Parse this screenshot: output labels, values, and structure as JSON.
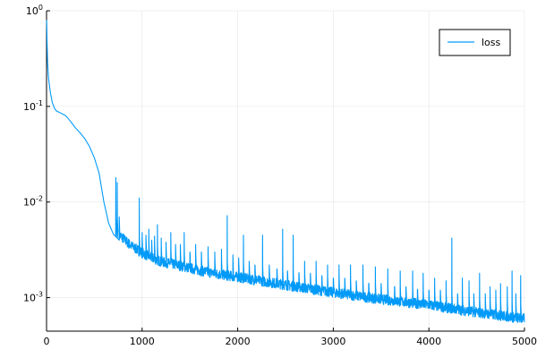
{
  "chart_data": {
    "type": "line",
    "title": "",
    "xlabel": "",
    "ylabel": "",
    "y_scale": "log",
    "grid": true,
    "legend_position": "top-right",
    "xlim": [
      0,
      5000
    ],
    "ylim_log10": [
      -3.35,
      0
    ],
    "x_ticks": [
      0,
      1000,
      2000,
      3000,
      4000,
      5000
    ],
    "x_tick_labels": [
      "0",
      "1000",
      "2000",
      "3000",
      "4000",
      "5000"
    ],
    "y_ticks": [
      1,
      0.1,
      0.01,
      0.001
    ],
    "y_tick_labels": [
      {
        "base": "10",
        "exp": "0"
      },
      {
        "base": "10",
        "exp": "-1"
      },
      {
        "base": "10",
        "exp": "-2"
      },
      {
        "base": "10",
        "exp": "-3"
      }
    ],
    "series": [
      {
        "name": "loss",
        "color": "#009af9",
        "baseline": [
          [
            1,
            0.8
          ],
          [
            5,
            0.5
          ],
          [
            10,
            0.3
          ],
          [
            20,
            0.2
          ],
          [
            40,
            0.14
          ],
          [
            60,
            0.11
          ],
          [
            80,
            0.097
          ],
          [
            100,
            0.09
          ],
          [
            150,
            0.085
          ],
          [
            200,
            0.08
          ],
          [
            250,
            0.07
          ],
          [
            300,
            0.06
          ],
          [
            350,
            0.053
          ],
          [
            400,
            0.046
          ],
          [
            450,
            0.038
          ],
          [
            500,
            0.029
          ],
          [
            550,
            0.02
          ],
          [
            600,
            0.01
          ],
          [
            650,
            0.006
          ],
          [
            700,
            0.0046
          ],
          [
            730,
            0.0043
          ],
          [
            760,
            0.004
          ],
          [
            800,
            0.0037
          ],
          [
            850,
            0.0033
          ],
          [
            900,
            0.003
          ],
          [
            950,
            0.0028
          ],
          [
            1000,
            0.0026
          ],
          [
            1100,
            0.0023
          ],
          [
            1200,
            0.0021
          ],
          [
            1400,
            0.0019
          ],
          [
            1600,
            0.0017
          ],
          [
            1800,
            0.00155
          ],
          [
            2000,
            0.00145
          ],
          [
            2500,
            0.0012
          ],
          [
            3000,
            0.001
          ],
          [
            3500,
            0.00085
          ],
          [
            4000,
            0.00074
          ],
          [
            4500,
            0.00062
          ],
          [
            5000,
            0.00053
          ]
        ],
        "spikes": [
          [
            725,
            0.018
          ],
          [
            740,
            0.016
          ],
          [
            760,
            0.007
          ],
          [
            970,
            0.011
          ],
          [
            1000,
            0.0048
          ],
          [
            1040,
            0.0045
          ],
          [
            1070,
            0.0052
          ],
          [
            1100,
            0.004
          ],
          [
            1130,
            0.0044
          ],
          [
            1160,
            0.0058
          ],
          [
            1200,
            0.0042
          ],
          [
            1250,
            0.0038
          ],
          [
            1300,
            0.0048
          ],
          [
            1350,
            0.0036
          ],
          [
            1400,
            0.0036
          ],
          [
            1440,
            0.0048
          ],
          [
            1500,
            0.003
          ],
          [
            1560,
            0.0036
          ],
          [
            1620,
            0.003
          ],
          [
            1690,
            0.0034
          ],
          [
            1760,
            0.003
          ],
          [
            1830,
            0.0032
          ],
          [
            1890,
            0.0072
          ],
          [
            1950,
            0.0028
          ],
          [
            2010,
            0.0026
          ],
          [
            2060,
            0.0045
          ],
          [
            2120,
            0.0024
          ],
          [
            2180,
            0.0022
          ],
          [
            2260,
            0.0045
          ],
          [
            2330,
            0.0022
          ],
          [
            2410,
            0.002
          ],
          [
            2470,
            0.0052
          ],
          [
            2520,
            0.0018
          ],
          [
            2580,
            0.0045
          ],
          [
            2640,
            0.0018
          ],
          [
            2700,
            0.0024
          ],
          [
            2760,
            0.0018
          ],
          [
            2820,
            0.0024
          ],
          [
            2880,
            0.0017
          ],
          [
            2940,
            0.0022
          ],
          [
            3000,
            0.0016
          ],
          [
            3060,
            0.0022
          ],
          [
            3120,
            0.0016
          ],
          [
            3180,
            0.0022
          ],
          [
            3240,
            0.0015
          ],
          [
            3310,
            0.0022
          ],
          [
            3370,
            0.0014
          ],
          [
            3440,
            0.0021
          ],
          [
            3500,
            0.0014
          ],
          [
            3570,
            0.002
          ],
          [
            3640,
            0.0013
          ],
          [
            3700,
            0.0019
          ],
          [
            3760,
            0.0013
          ],
          [
            3830,
            0.0019
          ],
          [
            3880,
            0.0012
          ],
          [
            3940,
            0.0018
          ],
          [
            4000,
            0.0012
          ],
          [
            4060,
            0.0016
          ],
          [
            4120,
            0.0012
          ],
          [
            4180,
            0.0015
          ],
          [
            4240,
            0.0042
          ],
          [
            4300,
            0.0011
          ],
          [
            4350,
            0.0016
          ],
          [
            4420,
            0.0015
          ],
          [
            4470,
            0.0011
          ],
          [
            4530,
            0.0018
          ],
          [
            4590,
            0.0011
          ],
          [
            4640,
            0.0013
          ],
          [
            4700,
            0.0012
          ],
          [
            4750,
            0.0014
          ],
          [
            4820,
            0.0013
          ],
          [
            4870,
            0.0019
          ],
          [
            4910,
            0.0011
          ],
          [
            4960,
            0.0017
          ]
        ]
      }
    ]
  }
}
